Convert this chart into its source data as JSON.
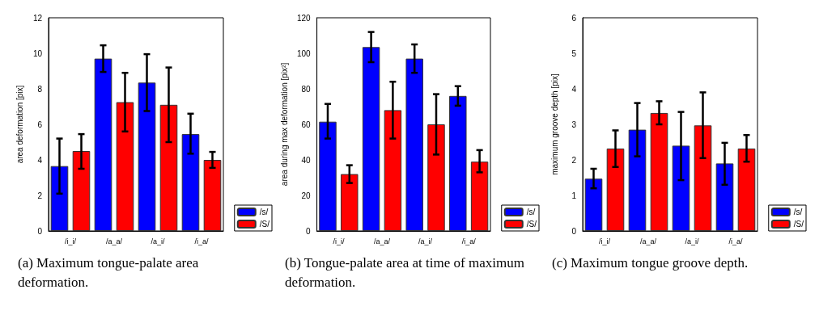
{
  "chart_data": [
    {
      "type": "bar",
      "ylabel": "area deformation [pix]",
      "categories": [
        "/i_i/",
        "/a_a/",
        "/a_i/",
        "/i_a/"
      ],
      "ylim": [
        0,
        12
      ],
      "yticks": [
        0,
        2,
        4,
        6,
        8,
        10,
        12
      ],
      "grid": false,
      "legend": "bottom right",
      "annotations": [
        "(a) Maximum tongue-palate area deformation."
      ],
      "series": [
        {
          "name": "/s/",
          "color": "#0000ff",
          "values": [
            3.65,
            9.7,
            8.35,
            5.45
          ],
          "errors": [
            [
              2.1,
              5.2
            ],
            [
              8.95,
              10.45
            ],
            [
              6.75,
              9.95
            ],
            [
              4.35,
              6.6
            ]
          ]
        },
        {
          "name": "/S/",
          "color": "#ff0000",
          "values": [
            4.5,
            7.25,
            7.1,
            4.0
          ],
          "errors": [
            [
              3.5,
              5.45
            ],
            [
              5.6,
              8.9
            ],
            [
              5.0,
              9.2
            ],
            [
              3.55,
              4.45
            ]
          ]
        }
      ]
    },
    {
      "type": "bar",
      "ylabel": "area during max deformation [pix²]",
      "categories": [
        "/i_i/",
        "/a_a/",
        "/a_i/",
        "/i_a/"
      ],
      "ylim": [
        0,
        120
      ],
      "yticks": [
        0,
        20,
        40,
        60,
        80,
        100,
        120
      ],
      "grid": false,
      "legend": "bottom right",
      "annotations": [
        "(b) Tongue-palate area at time of maximum deformation."
      ],
      "series": [
        {
          "name": "/s/",
          "color": "#0000ff",
          "values": [
            61.5,
            103.5,
            97,
            76
          ],
          "errors": [
            [
              52,
              71.5
            ],
            [
              95,
              112
            ],
            [
              89,
              105
            ],
            [
              70.5,
              81.5
            ]
          ]
        },
        {
          "name": "/S/",
          "color": "#ff0000",
          "values": [
            32,
            68,
            60,
            39
          ],
          "errors": [
            [
              27,
              37
            ],
            [
              52,
              84
            ],
            [
              43,
              77
            ],
            [
              33,
              45.5
            ]
          ]
        }
      ]
    },
    {
      "type": "bar",
      "ylabel": "maximum groove depth [pix]",
      "categories": [
        "/i_i/",
        "/a_a/",
        "/a_i/",
        "/i_a/"
      ],
      "ylim": [
        0,
        6
      ],
      "yticks": [
        0,
        1,
        2,
        3,
        4,
        5,
        6
      ],
      "grid": false,
      "legend": "bottom right",
      "annotations": [
        "(c) Maximum tongue groove depth."
      ],
      "series": [
        {
          "name": "/s/",
          "color": "#0000ff",
          "values": [
            1.47,
            2.85,
            2.4,
            1.9
          ],
          "errors": [
            [
              1.2,
              1.75
            ],
            [
              2.1,
              3.6
            ],
            [
              1.43,
              3.35
            ],
            [
              1.3,
              2.48
            ]
          ]
        },
        {
          "name": "/S/",
          "color": "#ff0000",
          "values": [
            2.32,
            3.32,
            2.97,
            2.32
          ],
          "errors": [
            [
              1.8,
              2.83
            ],
            [
              3.0,
              3.65
            ],
            [
              2.05,
              3.9
            ],
            [
              1.95,
              2.7
            ]
          ]
        }
      ]
    }
  ]
}
